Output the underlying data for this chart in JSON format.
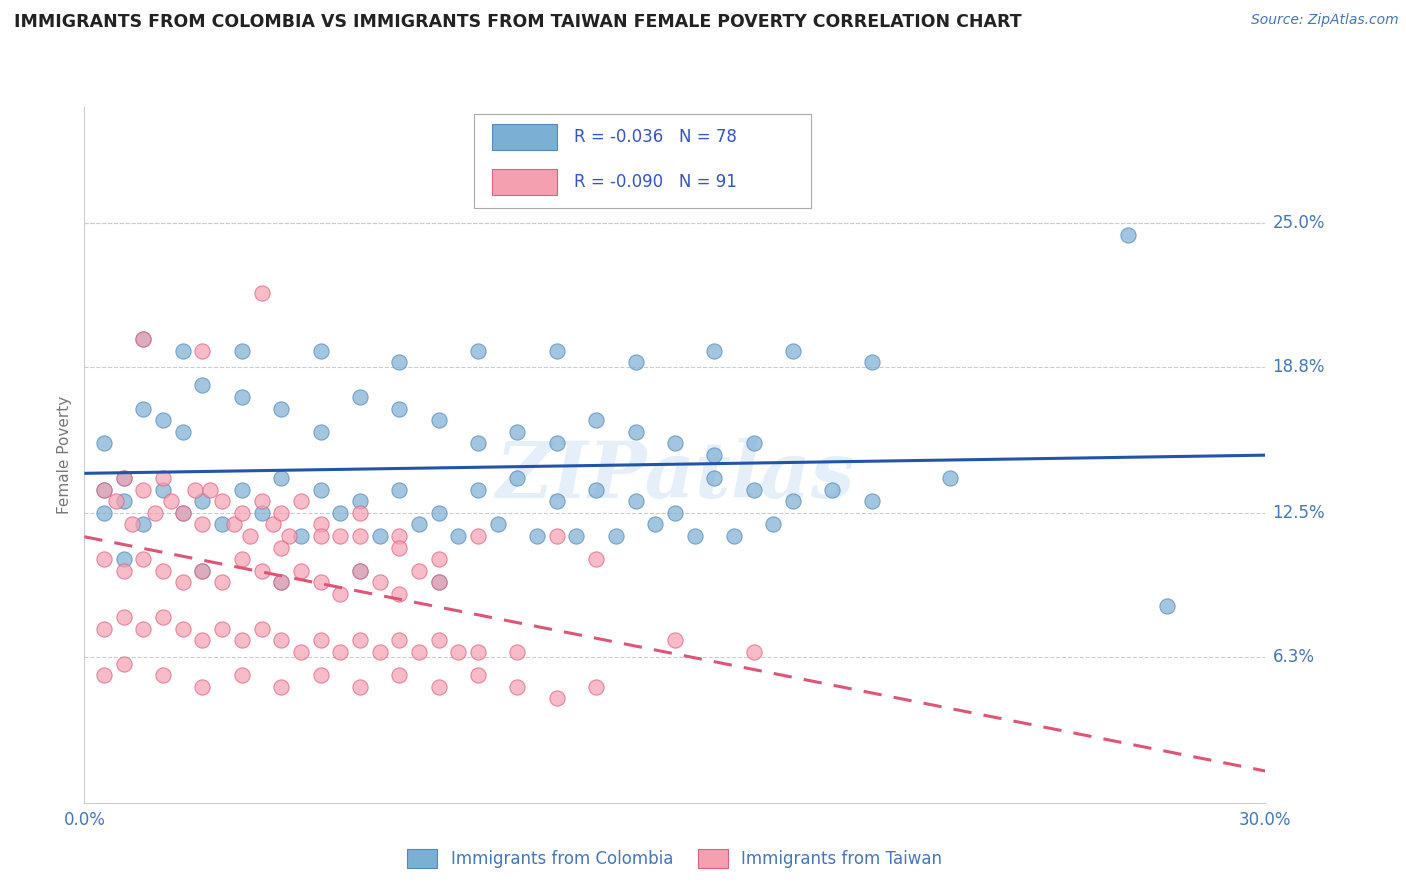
{
  "title": "IMMIGRANTS FROM COLOMBIA VS IMMIGRANTS FROM TAIWAN FEMALE POVERTY CORRELATION CHART",
  "source": "Source: ZipAtlas.com",
  "ylabel": "Female Poverty",
  "xlim": [
    0.0,
    0.3
  ],
  "ylim": [
    0.0,
    0.3
  ],
  "ytick_labels": [
    "6.3%",
    "12.5%",
    "18.8%",
    "25.0%"
  ],
  "ytick_values": [
    0.063,
    0.125,
    0.188,
    0.25
  ],
  "xtick_labels": [
    "0.0%",
    "30.0%"
  ],
  "xtick_values": [
    0.0,
    0.3
  ],
  "colombia_color": "#7bafd4",
  "colombia_edge": "#5588bb",
  "taiwan_color": "#f4a0b0",
  "taiwan_edge": "#e06080",
  "trend_colombia_color": "#2255aa",
  "trend_taiwan_color": "#e05575",
  "colombia_R": -0.036,
  "colombia_N": 78,
  "taiwan_R": -0.09,
  "taiwan_N": 91,
  "watermark": "ZIPatlas",
  "background_color": "#ffffff",
  "grid_color": "#cccccc",
  "axis_label_color": "#4477bb",
  "title_color": "#222222",
  "legend_R_color": "#3355cc",
  "colombia_scatter_x": [
    0.005,
    0.01,
    0.015,
    0.02,
    0.025,
    0.03,
    0.04,
    0.05,
    0.06,
    0.07,
    0.08,
    0.09,
    0.1,
    0.11,
    0.12,
    0.13,
    0.14,
    0.15,
    0.16,
    0.17,
    0.005,
    0.01,
    0.02,
    0.03,
    0.04,
    0.05,
    0.06,
    0.07,
    0.08,
    0.09,
    0.1,
    0.11,
    0.12,
    0.13,
    0.14,
    0.15,
    0.16,
    0.17,
    0.18,
    0.19,
    0.2,
    0.22,
    0.005,
    0.015,
    0.025,
    0.035,
    0.045,
    0.055,
    0.065,
    0.075,
    0.085,
    0.095,
    0.105,
    0.115,
    0.125,
    0.135,
    0.145,
    0.155,
    0.165,
    0.175,
    0.015,
    0.025,
    0.04,
    0.06,
    0.08,
    0.1,
    0.12,
    0.14,
    0.16,
    0.18,
    0.2,
    0.265,
    0.275,
    0.01,
    0.03,
    0.05,
    0.07,
    0.09
  ],
  "colombia_scatter_y": [
    0.155,
    0.14,
    0.17,
    0.165,
    0.16,
    0.18,
    0.175,
    0.17,
    0.16,
    0.175,
    0.17,
    0.165,
    0.155,
    0.16,
    0.155,
    0.165,
    0.16,
    0.155,
    0.15,
    0.155,
    0.135,
    0.13,
    0.135,
    0.13,
    0.135,
    0.14,
    0.135,
    0.13,
    0.135,
    0.125,
    0.135,
    0.14,
    0.13,
    0.135,
    0.13,
    0.125,
    0.14,
    0.135,
    0.13,
    0.135,
    0.13,
    0.14,
    0.125,
    0.12,
    0.125,
    0.12,
    0.125,
    0.115,
    0.125,
    0.115,
    0.12,
    0.115,
    0.12,
    0.115,
    0.115,
    0.115,
    0.12,
    0.115,
    0.115,
    0.12,
    0.2,
    0.195,
    0.195,
    0.195,
    0.19,
    0.195,
    0.195,
    0.19,
    0.195,
    0.195,
    0.19,
    0.245,
    0.085,
    0.105,
    0.1,
    0.095,
    0.1,
    0.095
  ],
  "taiwan_scatter_x": [
    0.005,
    0.008,
    0.01,
    0.012,
    0.015,
    0.018,
    0.02,
    0.022,
    0.025,
    0.028,
    0.03,
    0.032,
    0.035,
    0.038,
    0.04,
    0.042,
    0.045,
    0.048,
    0.05,
    0.052,
    0.055,
    0.06,
    0.065,
    0.07,
    0.005,
    0.01,
    0.015,
    0.02,
    0.025,
    0.03,
    0.035,
    0.04,
    0.045,
    0.05,
    0.055,
    0.06,
    0.065,
    0.07,
    0.075,
    0.08,
    0.085,
    0.09,
    0.005,
    0.01,
    0.015,
    0.02,
    0.025,
    0.03,
    0.035,
    0.04,
    0.045,
    0.05,
    0.055,
    0.06,
    0.065,
    0.07,
    0.075,
    0.08,
    0.085,
    0.09,
    0.095,
    0.1,
    0.11,
    0.005,
    0.01,
    0.02,
    0.03,
    0.04,
    0.05,
    0.06,
    0.07,
    0.08,
    0.09,
    0.1,
    0.11,
    0.12,
    0.13,
    0.15,
    0.17,
    0.07,
    0.05,
    0.08,
    0.09,
    0.12,
    0.13,
    0.06,
    0.08,
    0.1,
    0.015,
    0.03,
    0.045
  ],
  "taiwan_scatter_y": [
    0.135,
    0.13,
    0.14,
    0.12,
    0.135,
    0.125,
    0.14,
    0.13,
    0.125,
    0.135,
    0.12,
    0.135,
    0.13,
    0.12,
    0.125,
    0.115,
    0.13,
    0.12,
    0.125,
    0.115,
    0.13,
    0.12,
    0.115,
    0.125,
    0.105,
    0.1,
    0.105,
    0.1,
    0.095,
    0.1,
    0.095,
    0.105,
    0.1,
    0.095,
    0.1,
    0.095,
    0.09,
    0.1,
    0.095,
    0.09,
    0.1,
    0.095,
    0.075,
    0.08,
    0.075,
    0.08,
    0.075,
    0.07,
    0.075,
    0.07,
    0.075,
    0.07,
    0.065,
    0.07,
    0.065,
    0.07,
    0.065,
    0.07,
    0.065,
    0.07,
    0.065,
    0.065,
    0.065,
    0.055,
    0.06,
    0.055,
    0.05,
    0.055,
    0.05,
    0.055,
    0.05,
    0.055,
    0.05,
    0.055,
    0.05,
    0.045,
    0.05,
    0.07,
    0.065,
    0.115,
    0.11,
    0.115,
    0.105,
    0.115,
    0.105,
    0.115,
    0.11,
    0.115,
    0.2,
    0.195,
    0.22
  ]
}
